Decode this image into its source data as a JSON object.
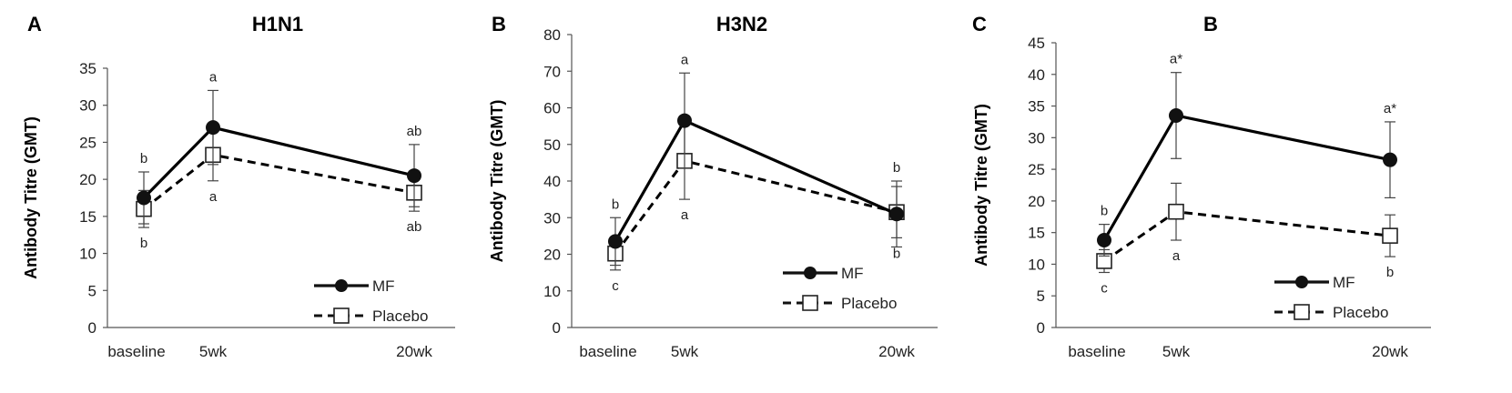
{
  "chart_data": [
    {
      "type": "line",
      "panel": "A",
      "title": "H1N1",
      "ylabel": "Antibody Titre (GMT)",
      "xlabel": "",
      "categories": [
        "baseline",
        "5wk",
        "20wk"
      ],
      "x_weeks": [
        0,
        5,
        20
      ],
      "ylim": [
        0,
        35
      ],
      "yticks": [
        0,
        5,
        10,
        15,
        20,
        25,
        30,
        35
      ],
      "grid": false,
      "legend_position": "bottom-right",
      "series": [
        {
          "name": "MF",
          "values": [
            17.5,
            27,
            20.5
          ],
          "err": [
            3.5,
            5,
            4.2
          ],
          "marker": "filled-circle",
          "line": "solid",
          "color": "#000000",
          "labels": [
            "b",
            "a",
            "ab"
          ],
          "label_side": "above"
        },
        {
          "name": "Placebo",
          "values": [
            16,
            23.3,
            18.2
          ],
          "err": [
            2.5,
            3.5,
            2.5
          ],
          "marker": "open-square",
          "line": "dashed",
          "color": "#000000",
          "labels": [
            "b",
            "a",
            "ab"
          ],
          "label_side": "below"
        }
      ]
    },
    {
      "type": "line",
      "panel": "B",
      "title": "H3N2",
      "ylabel": "Antibody Titre (GMT)",
      "xlabel": "",
      "categories": [
        "baseline",
        "5wk",
        "20wk"
      ],
      "x_weeks": [
        0,
        5,
        20
      ],
      "ylim": [
        0,
        80
      ],
      "yticks": [
        0,
        10,
        20,
        30,
        40,
        50,
        60,
        70,
        80
      ],
      "grid": false,
      "legend_position": "bottom-right",
      "series": [
        {
          "name": "MF",
          "values": [
            23.5,
            56.5,
            31
          ],
          "err": [
            6.5,
            13,
            9
          ],
          "marker": "filled-circle",
          "line": "solid",
          "color": "#000000",
          "labels": [
            "b",
            "a",
            "b"
          ],
          "label_side": "above"
        },
        {
          "name": "Placebo",
          "values": [
            20.2,
            45.5,
            31.5
          ],
          "err": [
            4.5,
            10.5,
            7
          ],
          "marker": "open-square",
          "line": "dashed",
          "color": "#000000",
          "labels": [
            "c",
            "a",
            "b"
          ],
          "label_side": "below"
        }
      ]
    },
    {
      "type": "line",
      "panel": "C",
      "title": "B",
      "ylabel": "Antibody Titre (GMT)",
      "xlabel": "",
      "categories": [
        "baseline",
        "5wk",
        "20wk"
      ],
      "x_weeks": [
        0,
        5,
        20
      ],
      "ylim": [
        0,
        45
      ],
      "yticks": [
        0,
        5,
        10,
        15,
        20,
        25,
        30,
        35,
        40,
        45
      ],
      "grid": false,
      "legend_position": "bottom-right",
      "series": [
        {
          "name": "MF",
          "values": [
            13.8,
            33.5,
            26.5
          ],
          "err": [
            2.5,
            6.8,
            6
          ],
          "marker": "filled-circle",
          "line": "solid",
          "color": "#000000",
          "labels": [
            "b",
            "a*",
            "a*"
          ],
          "label_side": "above"
        },
        {
          "name": "Placebo",
          "values": [
            10.5,
            18.3,
            14.5
          ],
          "err": [
            1.8,
            4.5,
            3.3
          ],
          "marker": "open-square",
          "line": "dashed",
          "color": "#000000",
          "labels": [
            "c",
            "a",
            "b"
          ],
          "label_side": "below"
        }
      ]
    }
  ]
}
